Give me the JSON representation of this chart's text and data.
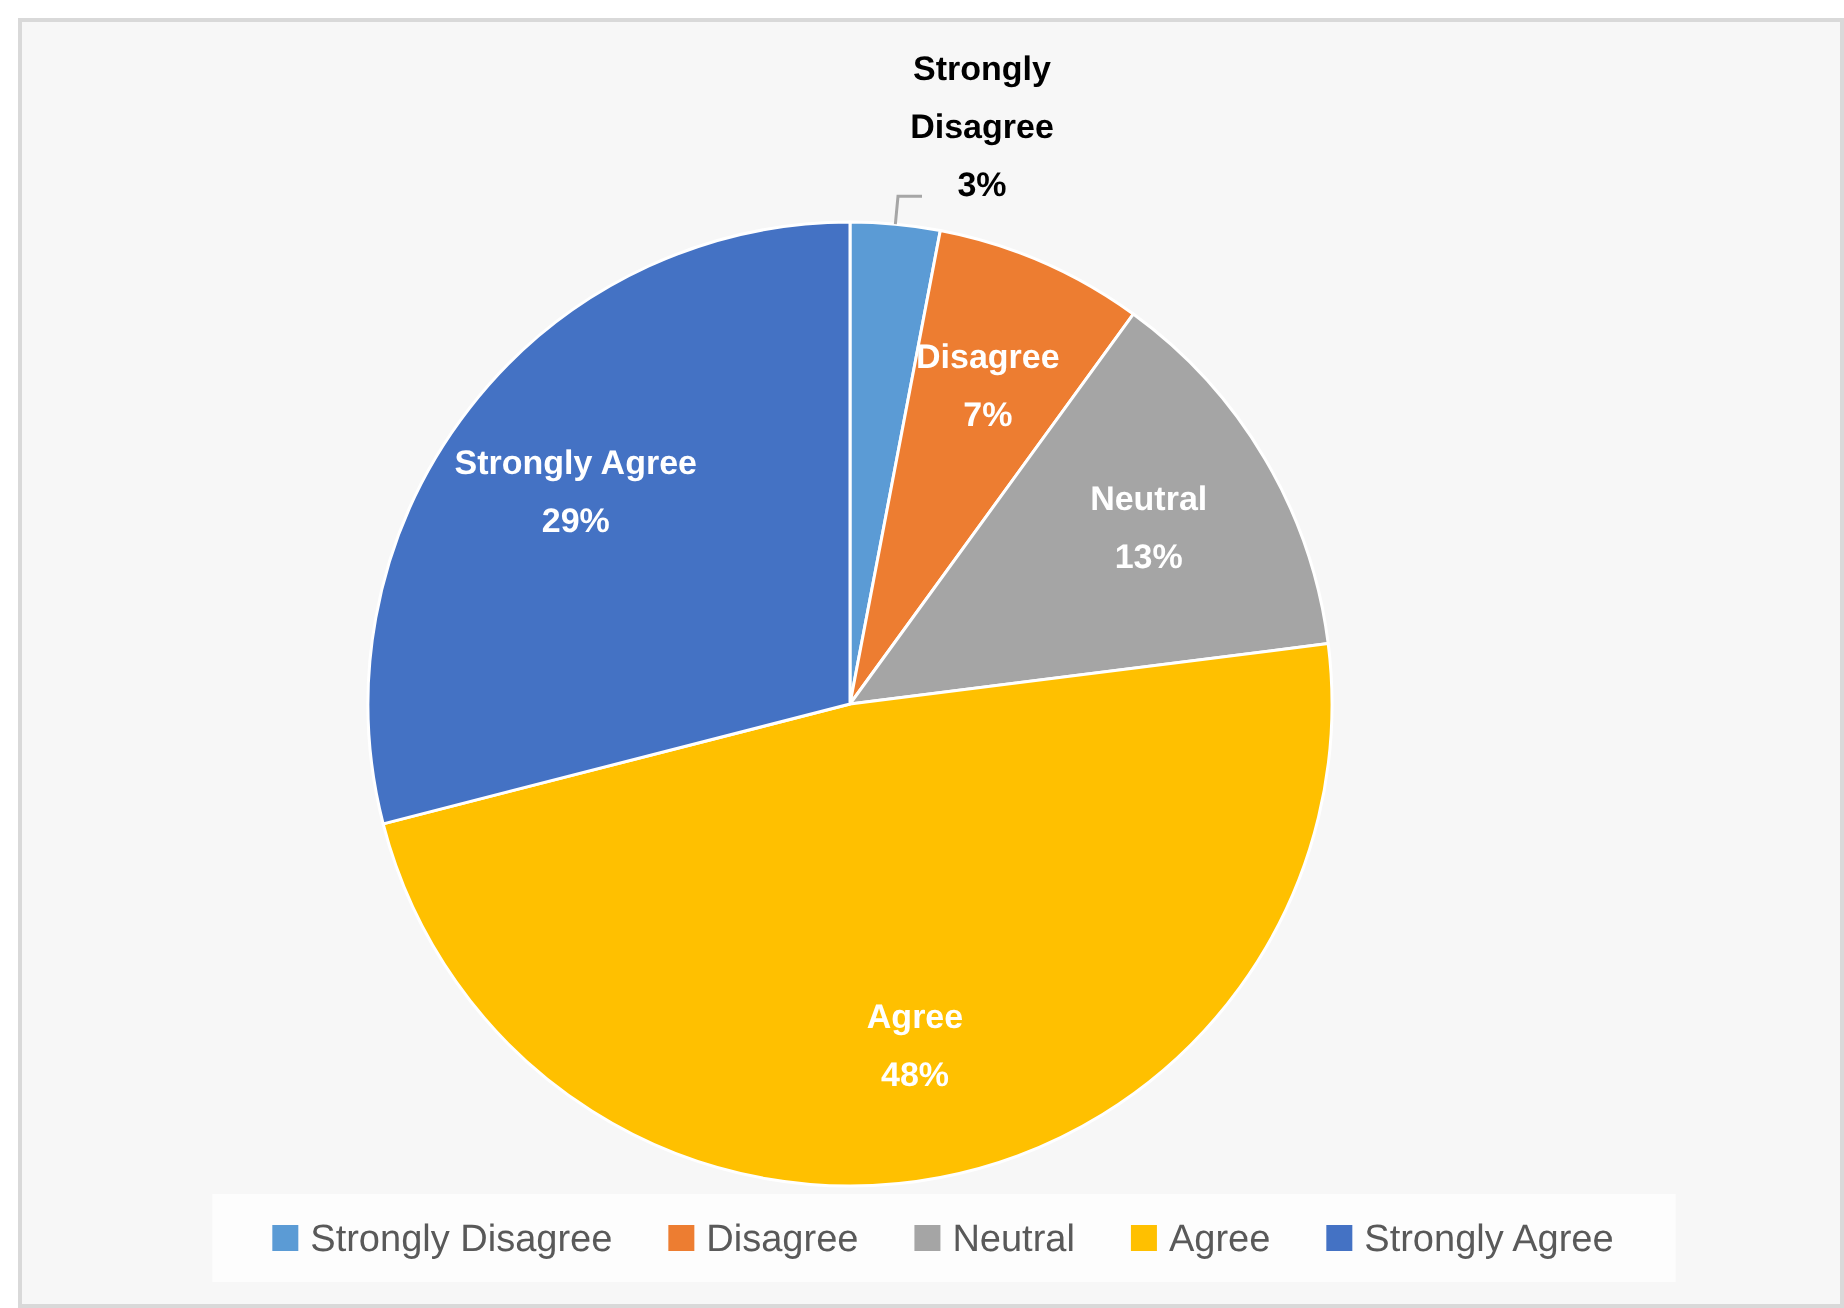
{
  "chart_data": {
    "type": "pie",
    "categories": [
      "Strongly Disagree",
      "Disagree",
      "Neutral",
      "Agree",
      "Strongly Agree"
    ],
    "values": [
      3,
      7,
      13,
      48,
      29
    ],
    "colors": [
      "#5b9bd5",
      "#ed7d31",
      "#a5a5a5",
      "#ffc000",
      "#4472c4"
    ],
    "value_labels": [
      "3%",
      "7%",
      "13%",
      "48%",
      "29%"
    ],
    "legend": "bottom"
  }
}
